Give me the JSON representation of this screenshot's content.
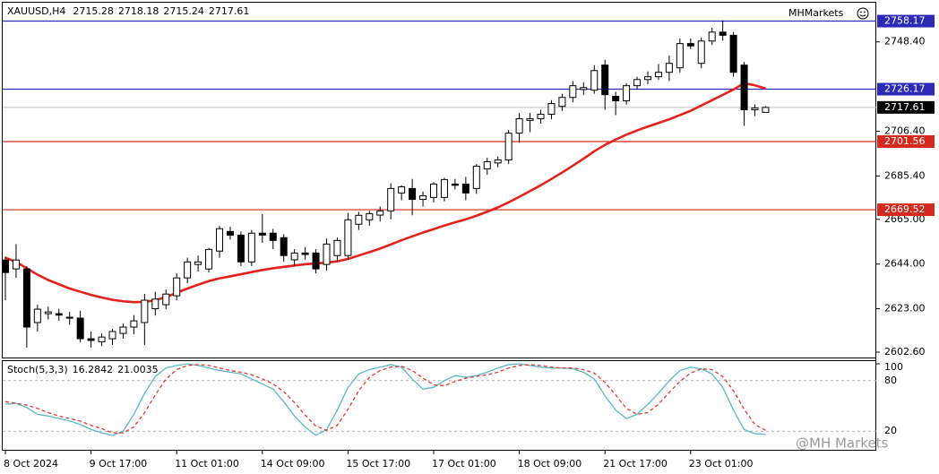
{
  "chart_data": [
    {
      "type": "candlestick",
      "title": "XAUUSD,H4",
      "broker": "MHMarkets",
      "watermark": "@MH Markets",
      "categories": [
        "8 Oct 2024",
        null,
        null,
        null,
        null,
        null,
        null,
        null,
        "9 Oct 17:00",
        null,
        null,
        null,
        null,
        null,
        null,
        null,
        "11 Oct 01:00",
        null,
        null,
        null,
        null,
        null,
        null,
        null,
        "14 Oct 09:00",
        null,
        null,
        null,
        null,
        null,
        null,
        null,
        "15 Oct 17:00",
        null,
        null,
        null,
        null,
        null,
        null,
        null,
        "17 Oct 01:00",
        null,
        null,
        null,
        null,
        null,
        null,
        null,
        "18 Oct 09:00",
        null,
        null,
        null,
        null,
        null,
        null,
        null,
        "21 Oct 17:00",
        null,
        null,
        null,
        null,
        null,
        null,
        null,
        "23 Oct 01:00",
        null,
        null,
        null,
        null,
        null,
        null,
        null
      ],
      "open": [
        2645.9,
        2641.7,
        2641.7,
        2616.5,
        2620.7,
        2620.7,
        2619.0,
        2618.6,
        2608.9,
        2607.5,
        2608.9,
        2611.4,
        2614.4,
        2616.5,
        2623.0,
        2624.9,
        2629.1,
        2637.5,
        2643.8,
        2641.7,
        2650.1,
        2659.3,
        2657.6,
        2645.0,
        2658.5,
        2658.5,
        2656.4,
        2646.0,
        2649.2,
        2649.2,
        2643.8,
        2648.0,
        2648.0,
        2662.7,
        2664.8,
        2667.0,
        2669.0,
        2677.4,
        2679.5,
        2674.4,
        2675.3,
        2675.3,
        2681.6,
        2681.6,
        2679.5,
        2688.7,
        2691.5,
        2692.9,
        2705.5,
        2711.5,
        2712.3,
        2714.4,
        2718.1,
        2722.3,
        2726.0,
        2725.7,
        2737.5,
        2722.8,
        2720.7,
        2727.8,
        2730.7,
        2732.0,
        2734.1,
        2736.2,
        2747.6,
        2738.3,
        2748.8,
        2753.0,
        2751.5,
        2737.5,
        2716.5,
        2715.28
      ],
      "high": [
        2647.5,
        2653.4,
        2643.0,
        2624.9,
        2624.0,
        2623.0,
        2621.5,
        2622.0,
        2612.3,
        2611.4,
        2613.5,
        2616.0,
        2620.0,
        2630.0,
        2631.0,
        2632.0,
        2639.6,
        2647.0,
        2648.0,
        2651.5,
        2662.0,
        2661.5,
        2659.3,
        2660.0,
        2667.5,
        2660.5,
        2658.0,
        2651.0,
        2652.0,
        2651.0,
        2656.0,
        2656.5,
        2668.0,
        2668.5,
        2669.0,
        2671.0,
        2682.0,
        2681.0,
        2684.0,
        2678.0,
        2682.5,
        2684.5,
        2684.0,
        2685.0,
        2691.0,
        2694.0,
        2694.5,
        2707.0,
        2715.0,
        2715.0,
        2716.5,
        2721.0,
        2724.0,
        2730.0,
        2729.5,
        2737.5,
        2740.0,
        2725.0,
        2729.0,
        2732.0,
        2734.5,
        2738.0,
        2742.0,
        2750.0,
        2750.0,
        2750.5,
        2755.0,
        2758.5,
        2753.0,
        2739.0,
        2719.0,
        2718.18
      ],
      "low": [
        2627.0,
        2637.5,
        2604.7,
        2612.3,
        2618.0,
        2617.3,
        2615.5,
        2607.2,
        2604.7,
        2605.5,
        2606.0,
        2608.9,
        2611.0,
        2606.0,
        2619.8,
        2622.8,
        2627.0,
        2635.0,
        2640.5,
        2640.0,
        2647.0,
        2655.5,
        2643.0,
        2643.0,
        2654.0,
        2651.0,
        2645.0,
        2643.0,
        2646.0,
        2639.6,
        2641.0,
        2645.0,
        2646.0,
        2660.0,
        2662.0,
        2664.0,
        2665.0,
        2674.0,
        2666.9,
        2671.0,
        2673.0,
        2673.5,
        2679.0,
        2674.0,
        2677.0,
        2686.0,
        2689.5,
        2691.0,
        2701.0,
        2706.0,
        2710.0,
        2712.0,
        2716.0,
        2720.0,
        2723.5,
        2724.0,
        2716.5,
        2714.0,
        2719.0,
        2726.0,
        2728.5,
        2730.5,
        2730.0,
        2734.0,
        2745.0,
        2736.0,
        2747.0,
        2749.0,
        2732.0,
        2708.9,
        2713.5,
        2715.24
      ],
      "close": [
        2640.0,
        2645.9,
        2614.4,
        2622.8,
        2621.5,
        2620.0,
        2618.6,
        2608.9,
        2608.1,
        2609.7,
        2612.3,
        2614.4,
        2617.3,
        2627.0,
        2627.5,
        2629.9,
        2637.5,
        2645.0,
        2645.0,
        2650.9,
        2660.6,
        2657.6,
        2645.0,
        2658.5,
        2657.6,
        2655.1,
        2648.0,
        2649.2,
        2648.5,
        2641.7,
        2653.4,
        2655.1,
        2664.8,
        2666.9,
        2667.7,
        2669.0,
        2679.5,
        2680.3,
        2674.4,
        2676.1,
        2681.6,
        2683.7,
        2681.0,
        2677.4,
        2690.0,
        2692.1,
        2692.9,
        2705.5,
        2712.3,
        2712.3,
        2714.4,
        2719.4,
        2722.3,
        2727.8,
        2726.9,
        2734.9,
        2723.6,
        2720.7,
        2727.8,
        2730.7,
        2732.0,
        2734.1,
        2738.3,
        2747.6,
        2746.5,
        2748.8,
        2753.0,
        2751.5,
        2734.1,
        2716.5,
        2717.3,
        2717.61
      ],
      "up_color": "#ffffff",
      "down_color": "#000000",
      "moving_average": {
        "color": "#e3221c",
        "values": [
          2647.0,
          2645.0,
          2642.0,
          2639.0,
          2636.5,
          2634.5,
          2632.5,
          2631.0,
          2629.5,
          2628.3,
          2627.2,
          2626.5,
          2626.1,
          2626.2,
          2627.0,
          2628.5,
          2630.5,
          2632.5,
          2634.3,
          2636.0,
          2637.3,
          2638.2,
          2639.2,
          2640.2,
          2641.2,
          2642.0,
          2642.7,
          2643.3,
          2643.9,
          2644.3,
          2644.6,
          2645.3,
          2646.4,
          2648.0,
          2649.6,
          2651.3,
          2653.2,
          2655.2,
          2657.0,
          2658.8,
          2660.4,
          2662.1,
          2663.6,
          2665.0,
          2666.7,
          2668.6,
          2670.6,
          2673.0,
          2675.6,
          2678.3,
          2681.0,
          2684.0,
          2687.0,
          2690.2,
          2693.5,
          2697.0,
          2700.0,
          2702.5,
          2704.8,
          2706.8,
          2708.6,
          2710.3,
          2712.0,
          2714.0,
          2716.0,
          2718.5,
          2721.0,
          2723.5,
          2726.0,
          2729.0,
          2728.0,
          2726.5
        ]
      },
      "levels": [
        {
          "value": 2758.17,
          "color": "#2b2bb8"
        },
        {
          "value": 2726.17,
          "color": "#2b2bb8"
        },
        {
          "value": 2701.56,
          "color": "#d42a1e"
        },
        {
          "value": 2669.52,
          "color": "#d42a1e"
        }
      ],
      "price_line_color": "#c0c0c0",
      "ylim": [
        2600.5,
        2760.5
      ],
      "yticks": [
        {
          "value": 2602.6,
          "label": "2602.60"
        },
        {
          "value": 2623,
          "label": "2623.00"
        },
        {
          "value": 2644,
          "label": "2644.00"
        },
        {
          "value": 2665,
          "label": "2665.00"
        },
        {
          "value": 2685.4,
          "label": "2685.40"
        },
        {
          "value": 2706.4,
          "label": "2706.40"
        },
        {
          "value": 2748.4,
          "label": "2748.40"
        }
      ]
    },
    {
      "type": "line",
      "title": "Stoch(5,3,3)",
      "series": [
        {
          "color": "#5bb7c9",
          "values": [
            52,
            53,
            48,
            40,
            38,
            35,
            32,
            28,
            22,
            18,
            15,
            20,
            40,
            65,
            85,
            95,
            98,
            100,
            98,
            95,
            92,
            90,
            88,
            82,
            76,
            70,
            55,
            38,
            25,
            15,
            22,
            45,
            72,
            88,
            93,
            96,
            99,
            96,
            82,
            70,
            72,
            80,
            86,
            84,
            86,
            90,
            95,
            99,
            100,
            98,
            96,
            95,
            95,
            94,
            90,
            82,
            62,
            45,
            35,
            40,
            52,
            65,
            80,
            92,
            96,
            94,
            88,
            72,
            45,
            22,
            17,
            16.2842
          ]
        },
        {
          "color": "#e03a2e",
          "dashed": true,
          "values": [
            55,
            53,
            51,
            47,
            42,
            38,
            35,
            32,
            27,
            23,
            18,
            18,
            25,
            42,
            63,
            82,
            93,
            98,
            99,
            98,
            95,
            92,
            90,
            87,
            82,
            76,
            67,
            54,
            39,
            26,
            21,
            27,
            46,
            68,
            84,
            92,
            96,
            97,
            92,
            83,
            75,
            74,
            79,
            83,
            85,
            87,
            90,
            95,
            98,
            99,
            98,
            96,
            95,
            95,
            93,
            89,
            78,
            63,
            47,
            40,
            42,
            52,
            66,
            79,
            89,
            94,
            93,
            85,
            68,
            46,
            28,
            21.0035
          ]
        }
      ],
      "ylim": [
        0,
        100
      ],
      "yticks": [
        20,
        80,
        100
      ]
    }
  ]
}
